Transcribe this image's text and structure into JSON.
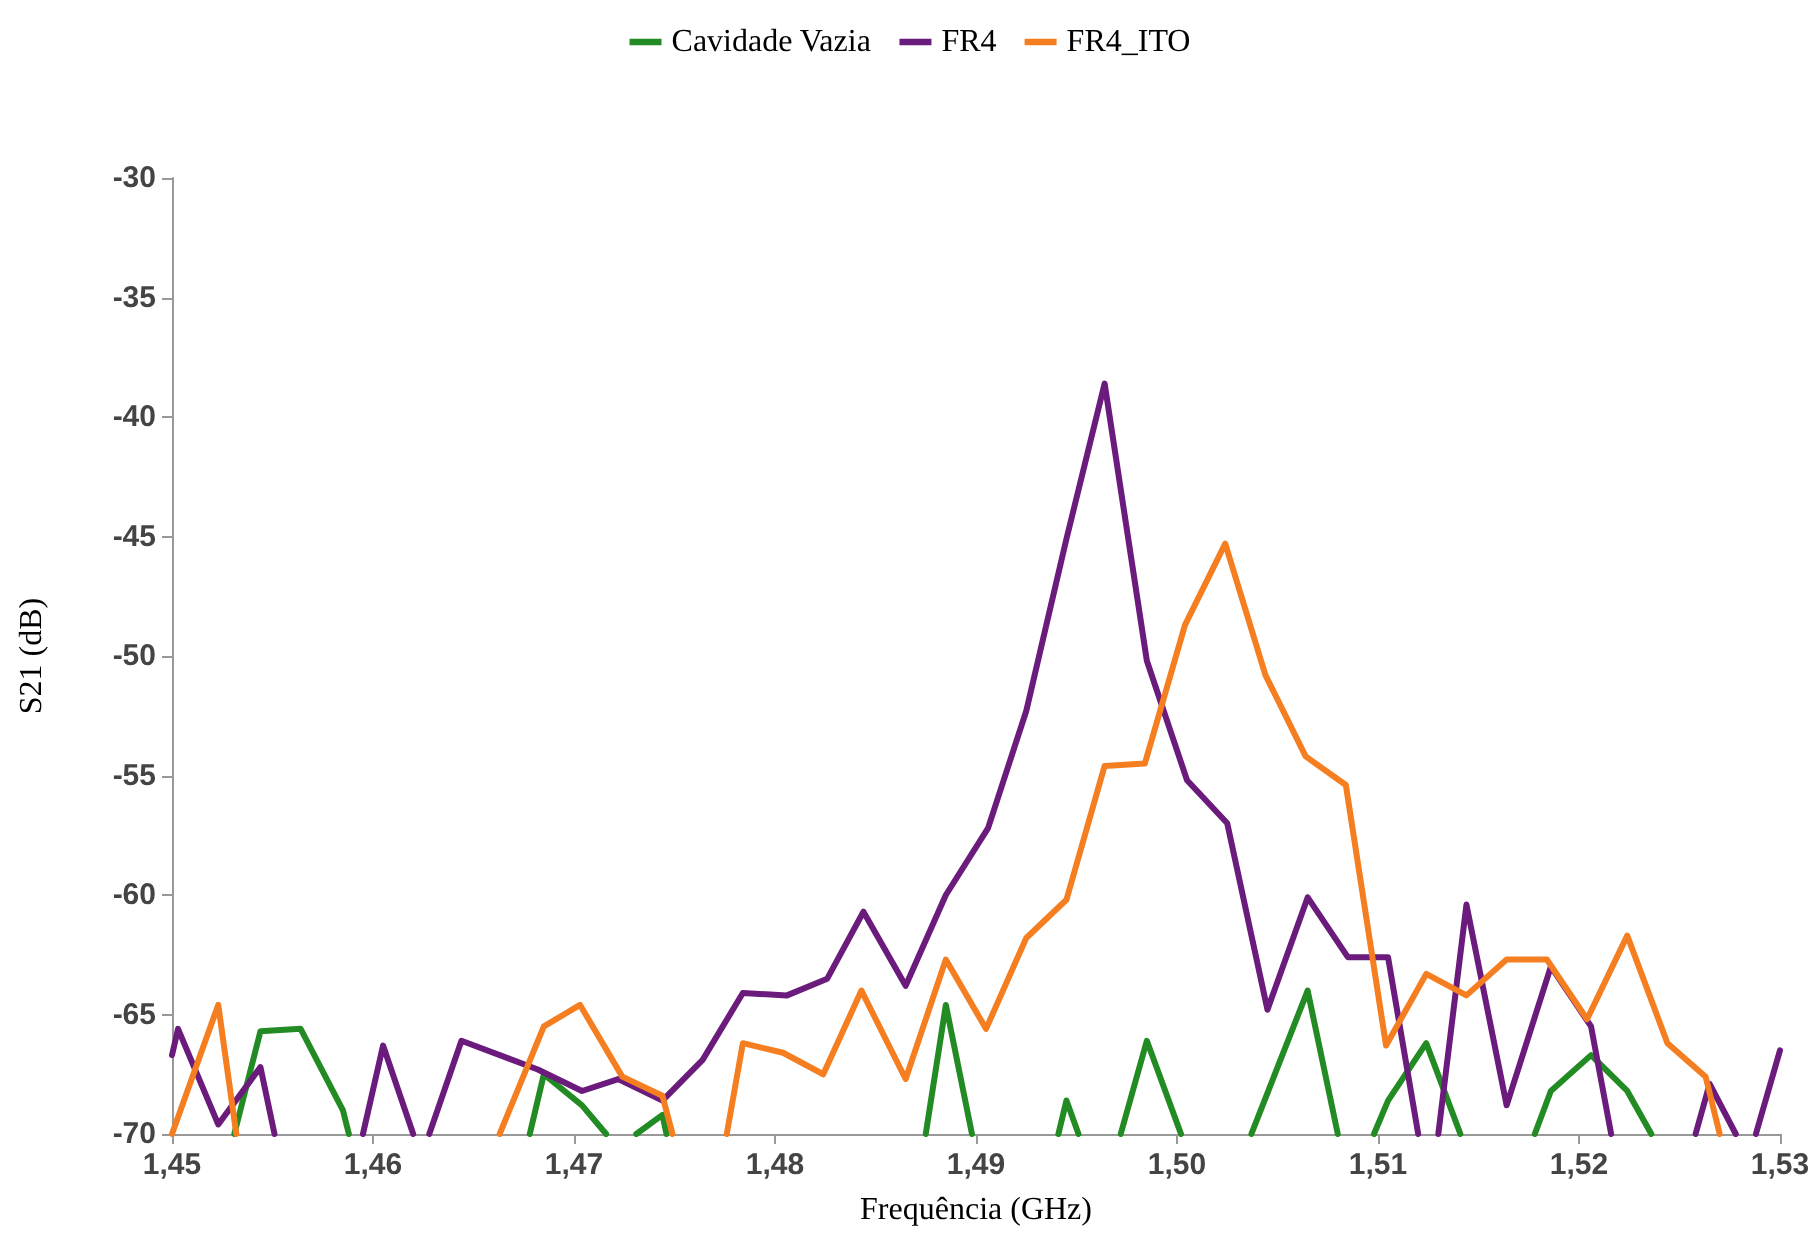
{
  "chart_data": {
    "type": "line",
    "xlabel": "Frequência (GHz)",
    "ylabel": "S21 (dB)",
    "xlim": [
      1.45,
      1.53
    ],
    "xticks": [
      {
        "value": 1.45,
        "label": "1,45"
      },
      {
        "value": 1.46,
        "label": "1,46"
      },
      {
        "value": 1.47,
        "label": "1,47"
      },
      {
        "value": 1.48,
        "label": "1,48"
      },
      {
        "value": 1.49,
        "label": "1,49"
      },
      {
        "value": 1.5,
        "label": "1,50"
      },
      {
        "value": 1.51,
        "label": "1,51"
      },
      {
        "value": 1.52,
        "label": "1,52"
      },
      {
        "value": 1.53,
        "label": "1,53"
      }
    ],
    "ylim": [
      -70,
      -30
    ],
    "yticks": [
      -70,
      -65,
      -60,
      -55,
      -50,
      -45,
      -40,
      -35,
      -30
    ],
    "grid": false,
    "legend": "top",
    "marker": "none",
    "line_style": "solid",
    "series": [
      {
        "name": "Cavidade Vazia",
        "color": "#238b23",
        "x": [
          1.4531,
          1.4544,
          1.4564,
          1.4585,
          1.4588,
          1.463,
          1.4678,
          1.4685,
          1.4704,
          1.4716,
          1.472,
          1.4731,
          1.4744,
          1.4746,
          1.48,
          1.4875,
          1.4885,
          1.4898,
          1.492,
          1.4941,
          1.4945,
          1.4951,
          1.496,
          1.4972,
          1.4985,
          1.5002,
          1.502,
          1.5037,
          1.5065,
          1.508,
          1.509,
          1.5098,
          1.5105,
          1.5124,
          1.5141,
          1.516,
          1.5178,
          1.5186,
          1.5206,
          1.5224,
          1.5236
        ],
        "values": [
          -70,
          -65.7,
          -65.6,
          -69.0,
          -70,
          null,
          -70,
          -67.5,
          -68.8,
          -70,
          null,
          -70,
          -69.2,
          -70,
          null,
          -70,
          -64.6,
          -70,
          null,
          -70,
          -68.6,
          -70,
          null,
          -70,
          -66.1,
          -70,
          null,
          -70,
          -64.0,
          -70,
          null,
          -70,
          -68.6,
          -66.2,
          -70,
          null,
          -70,
          -68.2,
          -66.7,
          -68.2,
          -70
        ]
      },
      {
        "name": "FR4",
        "color": "#6a1b7c",
        "x": [
          1.45,
          1.4503,
          1.4523,
          1.4544,
          1.4551,
          1.457,
          1.4595,
          1.4605,
          1.462,
          1.4624,
          1.4628,
          1.4644,
          1.4682,
          1.4704,
          1.4722,
          1.4744,
          1.4764,
          1.4784,
          1.4806,
          1.4826,
          1.4844,
          1.4865,
          1.4885,
          1.4906,
          1.4925,
          1.4945,
          1.4964,
          1.4985,
          1.5005,
          1.5025,
          1.5045,
          1.5065,
          1.5085,
          1.5105,
          1.512,
          1.5125,
          1.513,
          1.5144,
          1.5164,
          1.5186,
          1.5206,
          1.5216,
          1.524,
          1.5258,
          1.5265,
          1.5278,
          1.5283,
          1.5288,
          1.53
        ],
        "values": [
          -66.7,
          -65.6,
          -69.6,
          -67.2,
          -70,
          null,
          -70,
          -66.3,
          -70,
          null,
          -70,
          -66.1,
          -67.3,
          -68.2,
          -67.7,
          -68.6,
          -66.9,
          -64.1,
          -64.2,
          -63.5,
          -60.7,
          -63.8,
          -60.0,
          -57.2,
          -52.3,
          -45.1,
          -38.6,
          -50.2,
          -55.2,
          -57.0,
          -64.8,
          -60.1,
          -62.6,
          -62.6,
          -70,
          null,
          -70,
          -60.4,
          -68.8,
          -63.0,
          -65.5,
          -70,
          null,
          -70,
          -67.9,
          -70,
          null,
          -70,
          -66.5
        ]
      },
      {
        "name": "FR4_ITO",
        "color": "#f57e20",
        "x": [
          1.45,
          1.4523,
          1.4532,
          1.46,
          1.4663,
          1.4685,
          1.4703,
          1.4724,
          1.4744,
          1.4749,
          1.476,
          1.4776,
          1.4784,
          1.4804,
          1.4824,
          1.4843,
          1.4865,
          1.4885,
          1.4905,
          1.4925,
          1.4945,
          1.4964,
          1.4984,
          1.5004,
          1.5024,
          1.5044,
          1.5064,
          1.5084,
          1.5104,
          1.5124,
          1.5144,
          1.5164,
          1.5184,
          1.5204,
          1.5224,
          1.5244,
          1.5263,
          1.527
        ],
        "values": [
          -70,
          -64.6,
          -70,
          null,
          -70,
          -65.5,
          -64.6,
          -67.6,
          -68.4,
          -70,
          null,
          -70,
          -66.2,
          -66.6,
          -67.5,
          -64.0,
          -67.7,
          -62.7,
          -65.6,
          -61.8,
          -60.2,
          -54.6,
          -54.5,
          -48.7,
          -45.3,
          -50.8,
          -54.2,
          -55.4,
          -66.3,
          -63.3,
          -64.2,
          -62.7,
          -62.7,
          -65.2,
          -61.7,
          -66.2,
          -67.6,
          -70
        ]
      }
    ]
  }
}
